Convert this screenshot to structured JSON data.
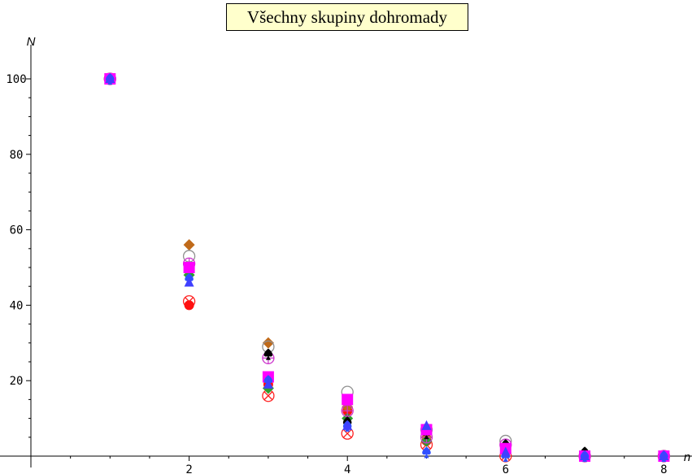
{
  "chart_data": {
    "type": "scatter",
    "title": "Všechny skupiny dohromady",
    "xlabel": "n",
    "ylabel": "N",
    "xlim": [
      0.0,
      8.2
    ],
    "ylim": [
      -2,
      105
    ],
    "xticks": [
      2,
      4,
      6,
      8
    ],
    "yticks": [
      20,
      40,
      60,
      80,
      100
    ],
    "grid": false,
    "series": [
      {
        "marker": "circle-x",
        "color": "#ff2020",
        "points": [
          [
            1,
            100
          ],
          [
            2,
            41
          ],
          [
            3,
            16
          ],
          [
            4,
            6
          ],
          [
            5,
            3
          ],
          [
            6,
            0
          ],
          [
            7,
            0
          ],
          [
            8,
            0
          ]
        ]
      },
      {
        "marker": "filled-circle",
        "color": "#ff1010",
        "points": [
          [
            1,
            100
          ],
          [
            2,
            40
          ],
          [
            3,
            19
          ],
          [
            4,
            12
          ],
          [
            5,
            4
          ],
          [
            6,
            1
          ],
          [
            7,
            0
          ],
          [
            8,
            0
          ]
        ]
      },
      {
        "marker": "diamond",
        "color": "#c06a1a",
        "points": [
          [
            1,
            100
          ],
          [
            2,
            56
          ],
          [
            3,
            30
          ],
          [
            4,
            13
          ],
          [
            5,
            5
          ],
          [
            6,
            1
          ],
          [
            7,
            0
          ],
          [
            8,
            0
          ]
        ]
      },
      {
        "marker": "diamond",
        "color": "#2e9e2e",
        "points": [
          [
            1,
            100
          ],
          [
            2,
            48
          ],
          [
            3,
            18
          ],
          [
            4,
            10
          ],
          [
            5,
            4
          ],
          [
            6,
            1
          ],
          [
            7,
            0
          ],
          [
            8,
            0
          ]
        ]
      },
      {
        "marker": "open-circle",
        "color": "#909090",
        "points": [
          [
            1,
            100
          ],
          [
            2,
            53
          ],
          [
            3,
            29
          ],
          [
            4,
            17
          ],
          [
            5,
            7
          ],
          [
            6,
            4
          ],
          [
            7,
            0
          ],
          [
            8,
            0
          ]
        ]
      },
      {
        "marker": "circle-plus",
        "color": "#cc33cc",
        "points": [
          [
            1,
            100
          ],
          [
            2,
            51
          ],
          [
            3,
            26
          ],
          [
            4,
            12
          ],
          [
            5,
            5
          ],
          [
            6,
            3
          ],
          [
            7,
            0
          ],
          [
            8,
            0
          ]
        ]
      },
      {
        "marker": "spade",
        "color": "#000000",
        "points": [
          [
            1,
            100
          ],
          [
            2,
            50
          ],
          [
            3,
            27
          ],
          [
            4,
            9
          ],
          [
            5,
            6
          ],
          [
            6,
            3
          ],
          [
            7,
            1
          ],
          [
            8,
            0
          ]
        ]
      },
      {
        "marker": "square",
        "color": "#ff00ff",
        "points": [
          [
            1,
            100
          ],
          [
            2,
            50
          ],
          [
            3,
            21
          ],
          [
            4,
            15
          ],
          [
            5,
            7
          ],
          [
            6,
            2
          ],
          [
            7,
            0
          ],
          [
            8,
            0
          ]
        ]
      },
      {
        "marker": "spade",
        "color": "#3050ff",
        "points": [
          [
            1,
            100
          ],
          [
            2,
            47
          ],
          [
            3,
            20
          ],
          [
            4,
            8
          ],
          [
            5,
            1
          ],
          [
            6,
            0
          ],
          [
            7,
            0
          ],
          [
            8,
            0
          ]
        ]
      },
      {
        "marker": "triangle",
        "color": "#4040ff",
        "points": [
          [
            1,
            100
          ],
          [
            2,
            46
          ],
          [
            3,
            19
          ],
          [
            4,
            8
          ],
          [
            5,
            8
          ],
          [
            6,
            1
          ],
          [
            7,
            0
          ],
          [
            8,
            0
          ]
        ]
      }
    ]
  }
}
